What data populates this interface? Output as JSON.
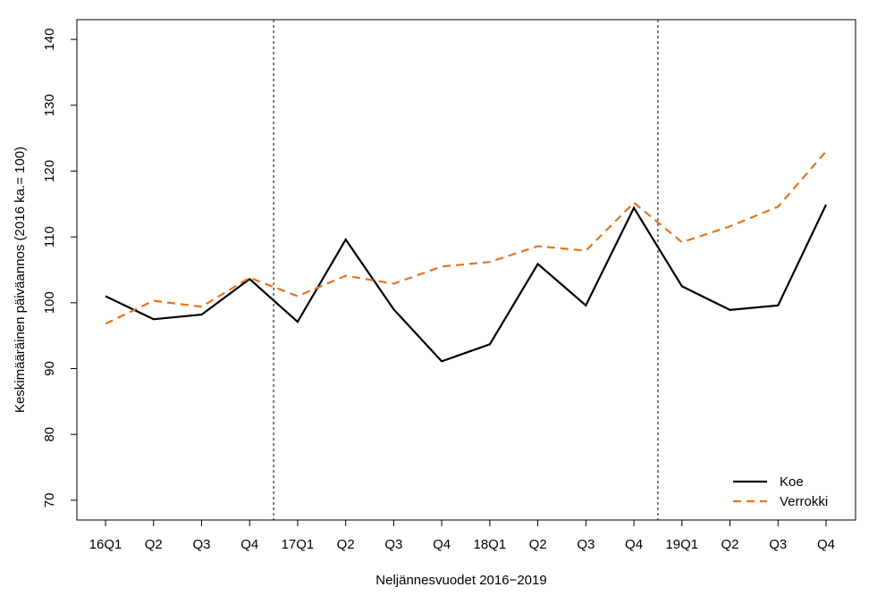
{
  "chart_data": {
    "type": "line",
    "title": "",
    "xlabel": "Neljännesvuodet 2016−2019",
    "ylabel": "Keskimääräinen päiväannos (2016 ka.= 100)",
    "categories": [
      "16Q1",
      "Q2",
      "Q3",
      "Q4",
      "17Q1",
      "Q2",
      "Q3",
      "Q4",
      "18Q1",
      "Q2",
      "Q3",
      "Q4",
      "19Q1",
      "Q2",
      "Q3",
      "Q4"
    ],
    "yticks": [
      70,
      80,
      90,
      100,
      110,
      120,
      130,
      140
    ],
    "ylim": [
      67,
      143
    ],
    "grid": false,
    "legend_position": "bottom-right",
    "year_dividers_after_index": [
      3,
      11
    ],
    "series": [
      {
        "name": "Koe",
        "color": "#000000",
        "dash": "solid",
        "values": [
          101.0,
          97.5,
          98.2,
          103.6,
          97.1,
          109.6,
          99.0,
          91.1,
          93.7,
          105.9,
          99.6,
          114.4,
          102.5,
          98.9,
          99.6,
          114.9
        ]
      },
      {
        "name": "Verrokki",
        "color": "#E8731F",
        "dash": "dashed",
        "values": [
          96.8,
          100.3,
          99.4,
          103.8,
          101.0,
          104.1,
          102.9,
          105.5,
          106.2,
          108.6,
          107.9,
          115.2,
          109.2,
          111.6,
          114.6,
          123.0
        ]
      }
    ]
  }
}
